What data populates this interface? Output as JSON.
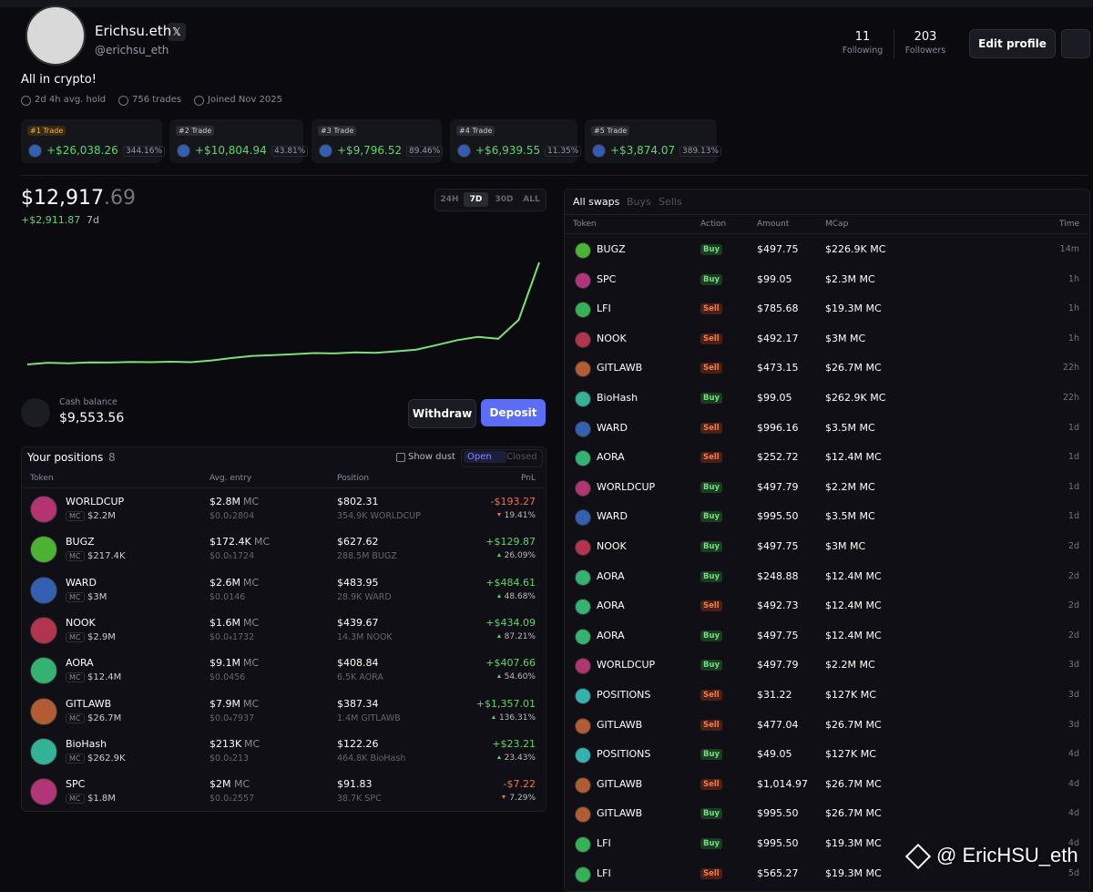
{
  "profile": {
    "name": "Erichsu.eth",
    "handle": "@erichsu_eth",
    "bio": "All in crypto!",
    "meta": [
      "2d 4h avg. hold",
      "756 trades",
      "Joined Nov 2025"
    ],
    "following": {
      "count": "11",
      "label": "Following"
    },
    "followers": {
      "count": "203",
      "label": "Followers"
    },
    "edit": "Edit profile"
  },
  "top_trades": [
    {
      "rank": "#1 Trade",
      "pnl": "+$26,038.26",
      "pct": "344.16%"
    },
    {
      "rank": "#2 Trade",
      "pnl": "+$10,804.94",
      "pct": "43.81%"
    },
    {
      "rank": "#3 Trade",
      "pnl": "+$9,796.52",
      "pct": "89.46%"
    },
    {
      "rank": "#4 Trade",
      "pnl": "+$6,939.55",
      "pct": "11.35%"
    },
    {
      "rank": "#5 Trade",
      "pnl": "+$3,874.07",
      "pct": "389.13%"
    }
  ],
  "portfolio": {
    "value_main": "$12,917",
    "value_cents": ".69",
    "change": "+$2,911.87",
    "period": "7d",
    "ranges": [
      "24H",
      "7D",
      "30D",
      "ALL"
    ],
    "selected_range": "7D",
    "chart": {
      "type": "line",
      "values": [
        10006,
        10055,
        10040,
        10065,
        10060,
        10075,
        10070,
        10085,
        10070,
        10120,
        10190,
        10250,
        10270,
        10300,
        10330,
        10320,
        10350,
        10340,
        10380,
        10430,
        10560,
        10700,
        10790,
        10740,
        11280,
        12917.69
      ]
    },
    "cash_label": "Cash balance",
    "cash": "$9,553.56",
    "withdraw": "Withdraw",
    "deposit": "Deposit"
  },
  "positions": {
    "title": "Your positions",
    "count": "8",
    "show_dust": "Show dust",
    "tabs": [
      "Open",
      "Closed"
    ],
    "columns": [
      "Token",
      "Avg. entry",
      "Position",
      "PnL"
    ],
    "mc_label": "MC",
    "rows": [
      {
        "token": "WORLDCUP",
        "mc": "$2.2M",
        "entry_mc": "$2.8M",
        "entry_price": "$0.0₂2804",
        "position": "$802.31",
        "qty": "354.9K WORLDCUP",
        "pnl": "-$193.27",
        "pnl_pct": "19.41%"
      },
      {
        "token": "BUGZ",
        "mc": "$217.4K",
        "entry_mc": "$172.4K",
        "entry_price": "$0.0₅1724",
        "position": "$627.62",
        "qty": "288.5M BUGZ",
        "pnl": "+$129.87",
        "pnl_pct": "26.09%"
      },
      {
        "token": "WARD",
        "mc": "$3M",
        "entry_mc": "$2.6M",
        "entry_price": "$0.0146",
        "position": "$483.95",
        "qty": "28.9K WARD",
        "pnl": "+$484.61",
        "pnl_pct": "48.68%"
      },
      {
        "token": "NOOK",
        "mc": "$2.9M",
        "entry_mc": "$1.6M",
        "entry_price": "$0.0₄1732",
        "position": "$439.67",
        "qty": "14.3M NOOK",
        "pnl": "+$434.09",
        "pnl_pct": "87.21%"
      },
      {
        "token": "AORA",
        "mc": "$12.4M",
        "entry_mc": "$9.1M",
        "entry_price": "$0.0456",
        "position": "$408.84",
        "qty": "6.5K AORA",
        "pnl": "+$407.66",
        "pnl_pct": "54.60%"
      },
      {
        "token": "GITLAWB",
        "mc": "$26.7M",
        "entry_mc": "$7.9M",
        "entry_price": "$0.0₄7937",
        "position": "$387.34",
        "qty": "1.4M GITLAWB",
        "pnl": "+$1,357.01",
        "pnl_pct": "136.31%"
      },
      {
        "token": "BioHash",
        "mc": "$262.9K",
        "entry_mc": "$213K",
        "entry_price": "$0.0₃213",
        "position": "$122.26",
        "qty": "464.8K BioHash",
        "pnl": "+$23.21",
        "pnl_pct": "23.43%"
      },
      {
        "token": "SPC",
        "mc": "$1.8M",
        "entry_mc": "$2M",
        "entry_price": "$0.0₂2557",
        "position": "$91.83",
        "qty": "38.7K SPC",
        "pnl": "-$7.22",
        "pnl_pct": "7.29%"
      }
    ]
  },
  "swaps": {
    "tabs": [
      "All swaps",
      "Buys",
      "Sells"
    ],
    "columns": [
      "Token",
      "Action",
      "Amount",
      "MCap",
      "Time"
    ],
    "rows": [
      [
        "BUGZ",
        "Buy",
        "$497.75",
        "$226.9K MC",
        "14m"
      ],
      [
        "SPC",
        "Buy",
        "$99.05",
        "$2.3M MC",
        "1h"
      ],
      [
        "LFI",
        "Sell",
        "$785.68",
        "$19.3M MC",
        "1h"
      ],
      [
        "NOOK",
        "Sell",
        "$492.17",
        "$3M MC",
        "1h"
      ],
      [
        "GITLAWB",
        "Sell",
        "$473.15",
        "$26.7M MC",
        "22h"
      ],
      [
        "BioHash",
        "Buy",
        "$99.05",
        "$262.9K MC",
        "22h"
      ],
      [
        "WARD",
        "Sell",
        "$996.16",
        "$3.5M MC",
        "1d"
      ],
      [
        "AORA",
        "Sell",
        "$252.72",
        "$12.4M MC",
        "1d"
      ],
      [
        "WORLDCUP",
        "Buy",
        "$497.79",
        "$2.2M MC",
        "1d"
      ],
      [
        "WARD",
        "Buy",
        "$995.50",
        "$3.5M MC",
        "1d"
      ],
      [
        "NOOK",
        "Buy",
        "$497.75",
        "$3M MC",
        "2d"
      ],
      [
        "AORA",
        "Buy",
        "$248.88",
        "$12.4M MC",
        "2d"
      ],
      [
        "AORA",
        "Sell",
        "$492.73",
        "$12.4M MC",
        "2d"
      ],
      [
        "AORA",
        "Buy",
        "$497.75",
        "$12.4M MC",
        "2d"
      ],
      [
        "WORLDCUP",
        "Buy",
        "$497.79",
        "$2.2M MC",
        "3d"
      ],
      [
        "POSITIONS",
        "Sell",
        "$31.22",
        "$127K MC",
        "3d"
      ],
      [
        "GITLAWB",
        "Sell",
        "$477.04",
        "$26.7M MC",
        "3d"
      ],
      [
        "POSITIONS",
        "Buy",
        "$49.05",
        "$127K MC",
        "4d"
      ],
      [
        "GITLAWB",
        "Sell",
        "$1,014.97",
        "$26.7M MC",
        "4d"
      ],
      [
        "GITLAWB",
        "Buy",
        "$995.50",
        "$26.7M MC",
        "4d"
      ],
      [
        "LFI",
        "Buy",
        "$995.50",
        "$19.3M MC",
        "4d"
      ],
      [
        "LFI",
        "Sell",
        "$565.27",
        "$19.3M MC",
        "5d"
      ]
    ]
  },
  "watermark": "@ EricHSU_eth"
}
